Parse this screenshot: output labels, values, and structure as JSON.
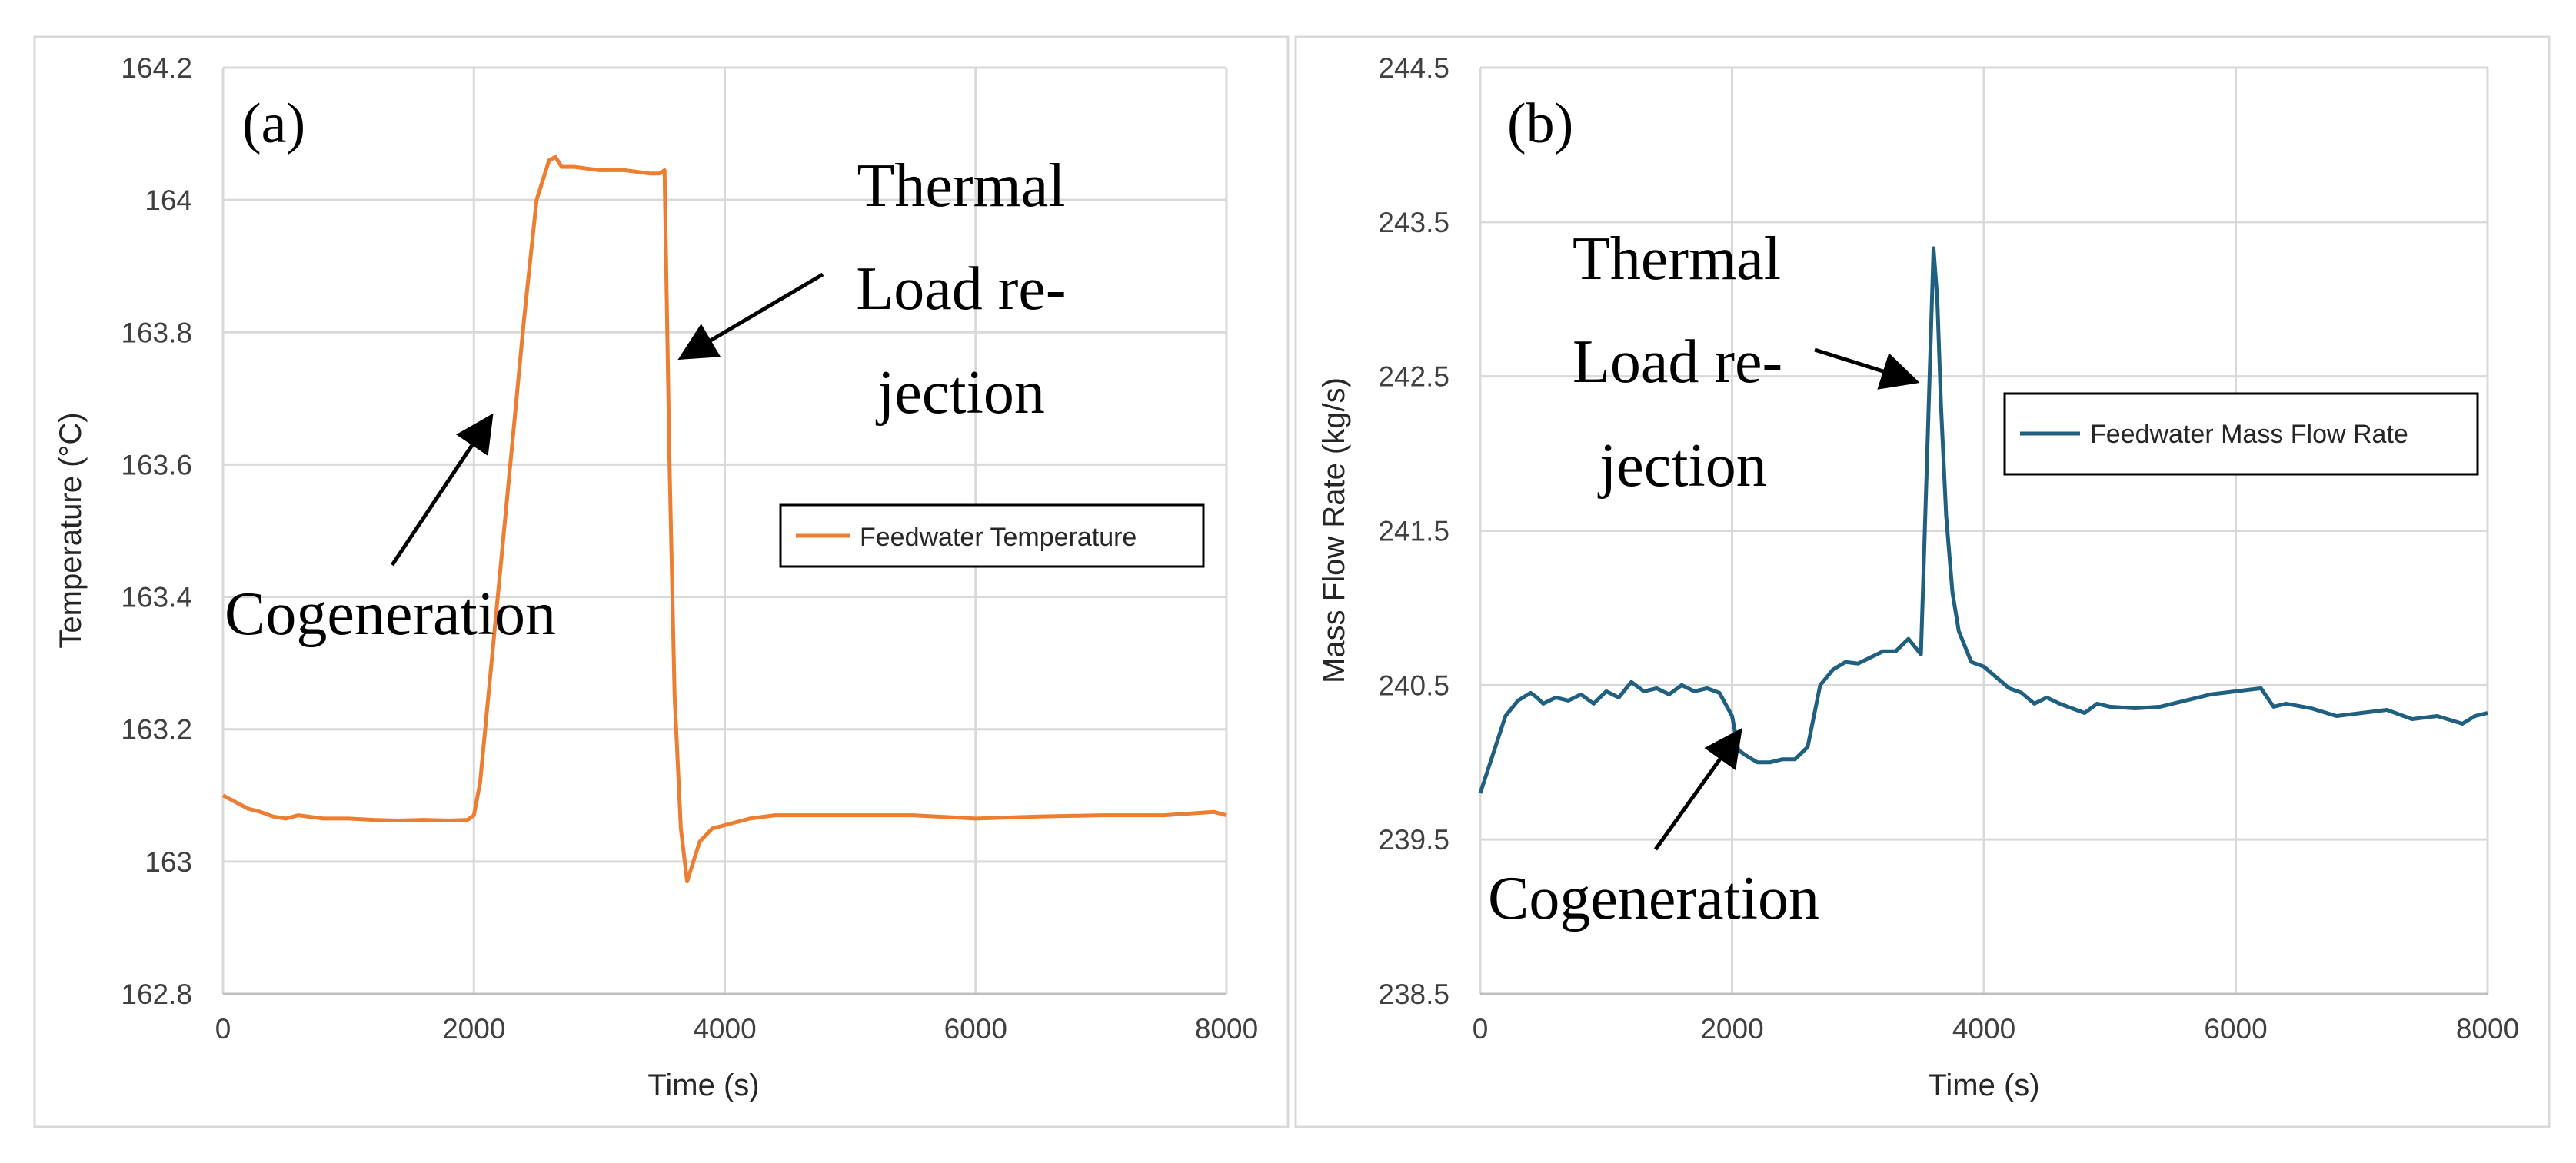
{
  "chart_data": [
    {
      "type": "line",
      "panel_label": "(a)",
      "xlabel": "Time (s)",
      "ylabel": "Temperature (°C)",
      "xlim": [
        0,
        8000
      ],
      "ylim": [
        162.8,
        164.2
      ],
      "xticks": [
        0,
        2000,
        4000,
        6000,
        8000
      ],
      "yticks": [
        162.8,
        163,
        163.2,
        163.4,
        163.6,
        163.8,
        164,
        164.2
      ],
      "ytick_labels": [
        "162.8",
        "163",
        "163.2",
        "163.4",
        "163.6",
        "163.8",
        "164",
        "164.2"
      ],
      "grid": true,
      "legend_position": "right",
      "annotations": [
        {
          "lines": [
            "Thermal",
            "Load re-",
            "jection"
          ],
          "arrow_to": [
            3580,
            163.76
          ]
        },
        {
          "lines": [
            "Cogeneration"
          ],
          "arrow_to": [
            2170,
            163.68
          ]
        }
      ],
      "series": [
        {
          "name": "Feedwater Temperature",
          "color": "#ED7D31",
          "x": [
            0,
            100,
            200,
            300,
            400,
            500,
            600,
            800,
            1000,
            1200,
            1400,
            1600,
            1800,
            1950,
            2000,
            2050,
            2100,
            2200,
            2300,
            2400,
            2500,
            2600,
            2650,
            2700,
            2800,
            3000,
            3200,
            3400,
            3480,
            3520,
            3560,
            3600,
            3650,
            3700,
            3750,
            3800,
            3900,
            4000,
            4200,
            4400,
            4600,
            5000,
            5500,
            6000,
            6500,
            7000,
            7500,
            7900,
            8000
          ],
          "y": [
            163.1,
            163.09,
            163.08,
            163.075,
            163.068,
            163.065,
            163.07,
            163.065,
            163.065,
            163.063,
            163.062,
            163.063,
            163.062,
            163.063,
            163.07,
            163.12,
            163.22,
            163.42,
            163.62,
            163.82,
            164.0,
            164.06,
            164.065,
            164.05,
            164.05,
            164.045,
            164.045,
            164.04,
            164.04,
            164.045,
            163.6,
            163.25,
            163.05,
            162.97,
            163.0,
            163.03,
            163.05,
            163.055,
            163.065,
            163.07,
            163.07,
            163.07,
            163.07,
            163.065,
            163.068,
            163.07,
            163.07,
            163.075,
            163.07
          ]
        }
      ]
    },
    {
      "type": "line",
      "panel_label": "(b)",
      "xlabel": "Time (s)",
      "ylabel": "Mass Flow Rate (kg/s)",
      "xlim": [
        0,
        8000
      ],
      "ylim": [
        238.5,
        244.5
      ],
      "xticks": [
        0,
        2000,
        4000,
        6000,
        8000
      ],
      "yticks": [
        238.5,
        239.5,
        240.5,
        241.5,
        242.5,
        243.5,
        244.5
      ],
      "ytick_labels": [
        "238.5",
        "239.5",
        "240.5",
        "241.5",
        "242.5",
        "243.5",
        "244.5"
      ],
      "grid": true,
      "legend_position": "right",
      "annotations": [
        {
          "lines": [
            "Thermal",
            "Load re-",
            "jection"
          ],
          "arrow_to": [
            3500,
            242.5
          ]
        },
        {
          "lines": [
            "Cogeneration"
          ],
          "arrow_to": [
            2050,
            240.25
          ]
        }
      ],
      "series": [
        {
          "name": "Feedwater Mass Flow Rate",
          "color": "#1F5F7F",
          "x": [
            0,
            100,
            200,
            300,
            400,
            450,
            500,
            600,
            700,
            800,
            900,
            1000,
            1100,
            1200,
            1300,
            1400,
            1500,
            1600,
            1700,
            1800,
            1900,
            2000,
            2050,
            2100,
            2200,
            2300,
            2400,
            2500,
            2600,
            2700,
            2800,
            2900,
            3000,
            3100,
            3200,
            3300,
            3400,
            3500,
            3550,
            3600,
            3630,
            3660,
            3700,
            3750,
            3800,
            3850,
            3900,
            4000,
            4100,
            4200,
            4300,
            4400,
            4500,
            4600,
            4700,
            4800,
            4900,
            5000,
            5200,
            5400,
            5600,
            5800,
            6000,
            6200,
            6300,
            6400,
            6600,
            6800,
            7000,
            7200,
            7400,
            7600,
            7800,
            7900,
            8000
          ],
          "y": [
            239.8,
            240.05,
            240.3,
            240.4,
            240.45,
            240.42,
            240.38,
            240.42,
            240.4,
            240.44,
            240.38,
            240.46,
            240.42,
            240.52,
            240.46,
            240.48,
            240.44,
            240.5,
            240.46,
            240.48,
            240.45,
            240.3,
            240.08,
            240.05,
            240.0,
            240.0,
            240.02,
            240.02,
            240.1,
            240.5,
            240.6,
            240.65,
            240.64,
            240.68,
            240.72,
            240.72,
            240.8,
            240.7,
            242.0,
            243.33,
            243.0,
            242.3,
            241.6,
            241.1,
            240.85,
            240.75,
            240.65,
            240.62,
            240.55,
            240.48,
            240.45,
            240.38,
            240.42,
            240.38,
            240.35,
            240.32,
            240.38,
            240.36,
            240.35,
            240.36,
            240.4,
            240.44,
            240.46,
            240.48,
            240.36,
            240.38,
            240.35,
            240.3,
            240.32,
            240.34,
            240.28,
            240.3,
            240.25,
            240.3,
            240.32
          ]
        }
      ]
    }
  ]
}
